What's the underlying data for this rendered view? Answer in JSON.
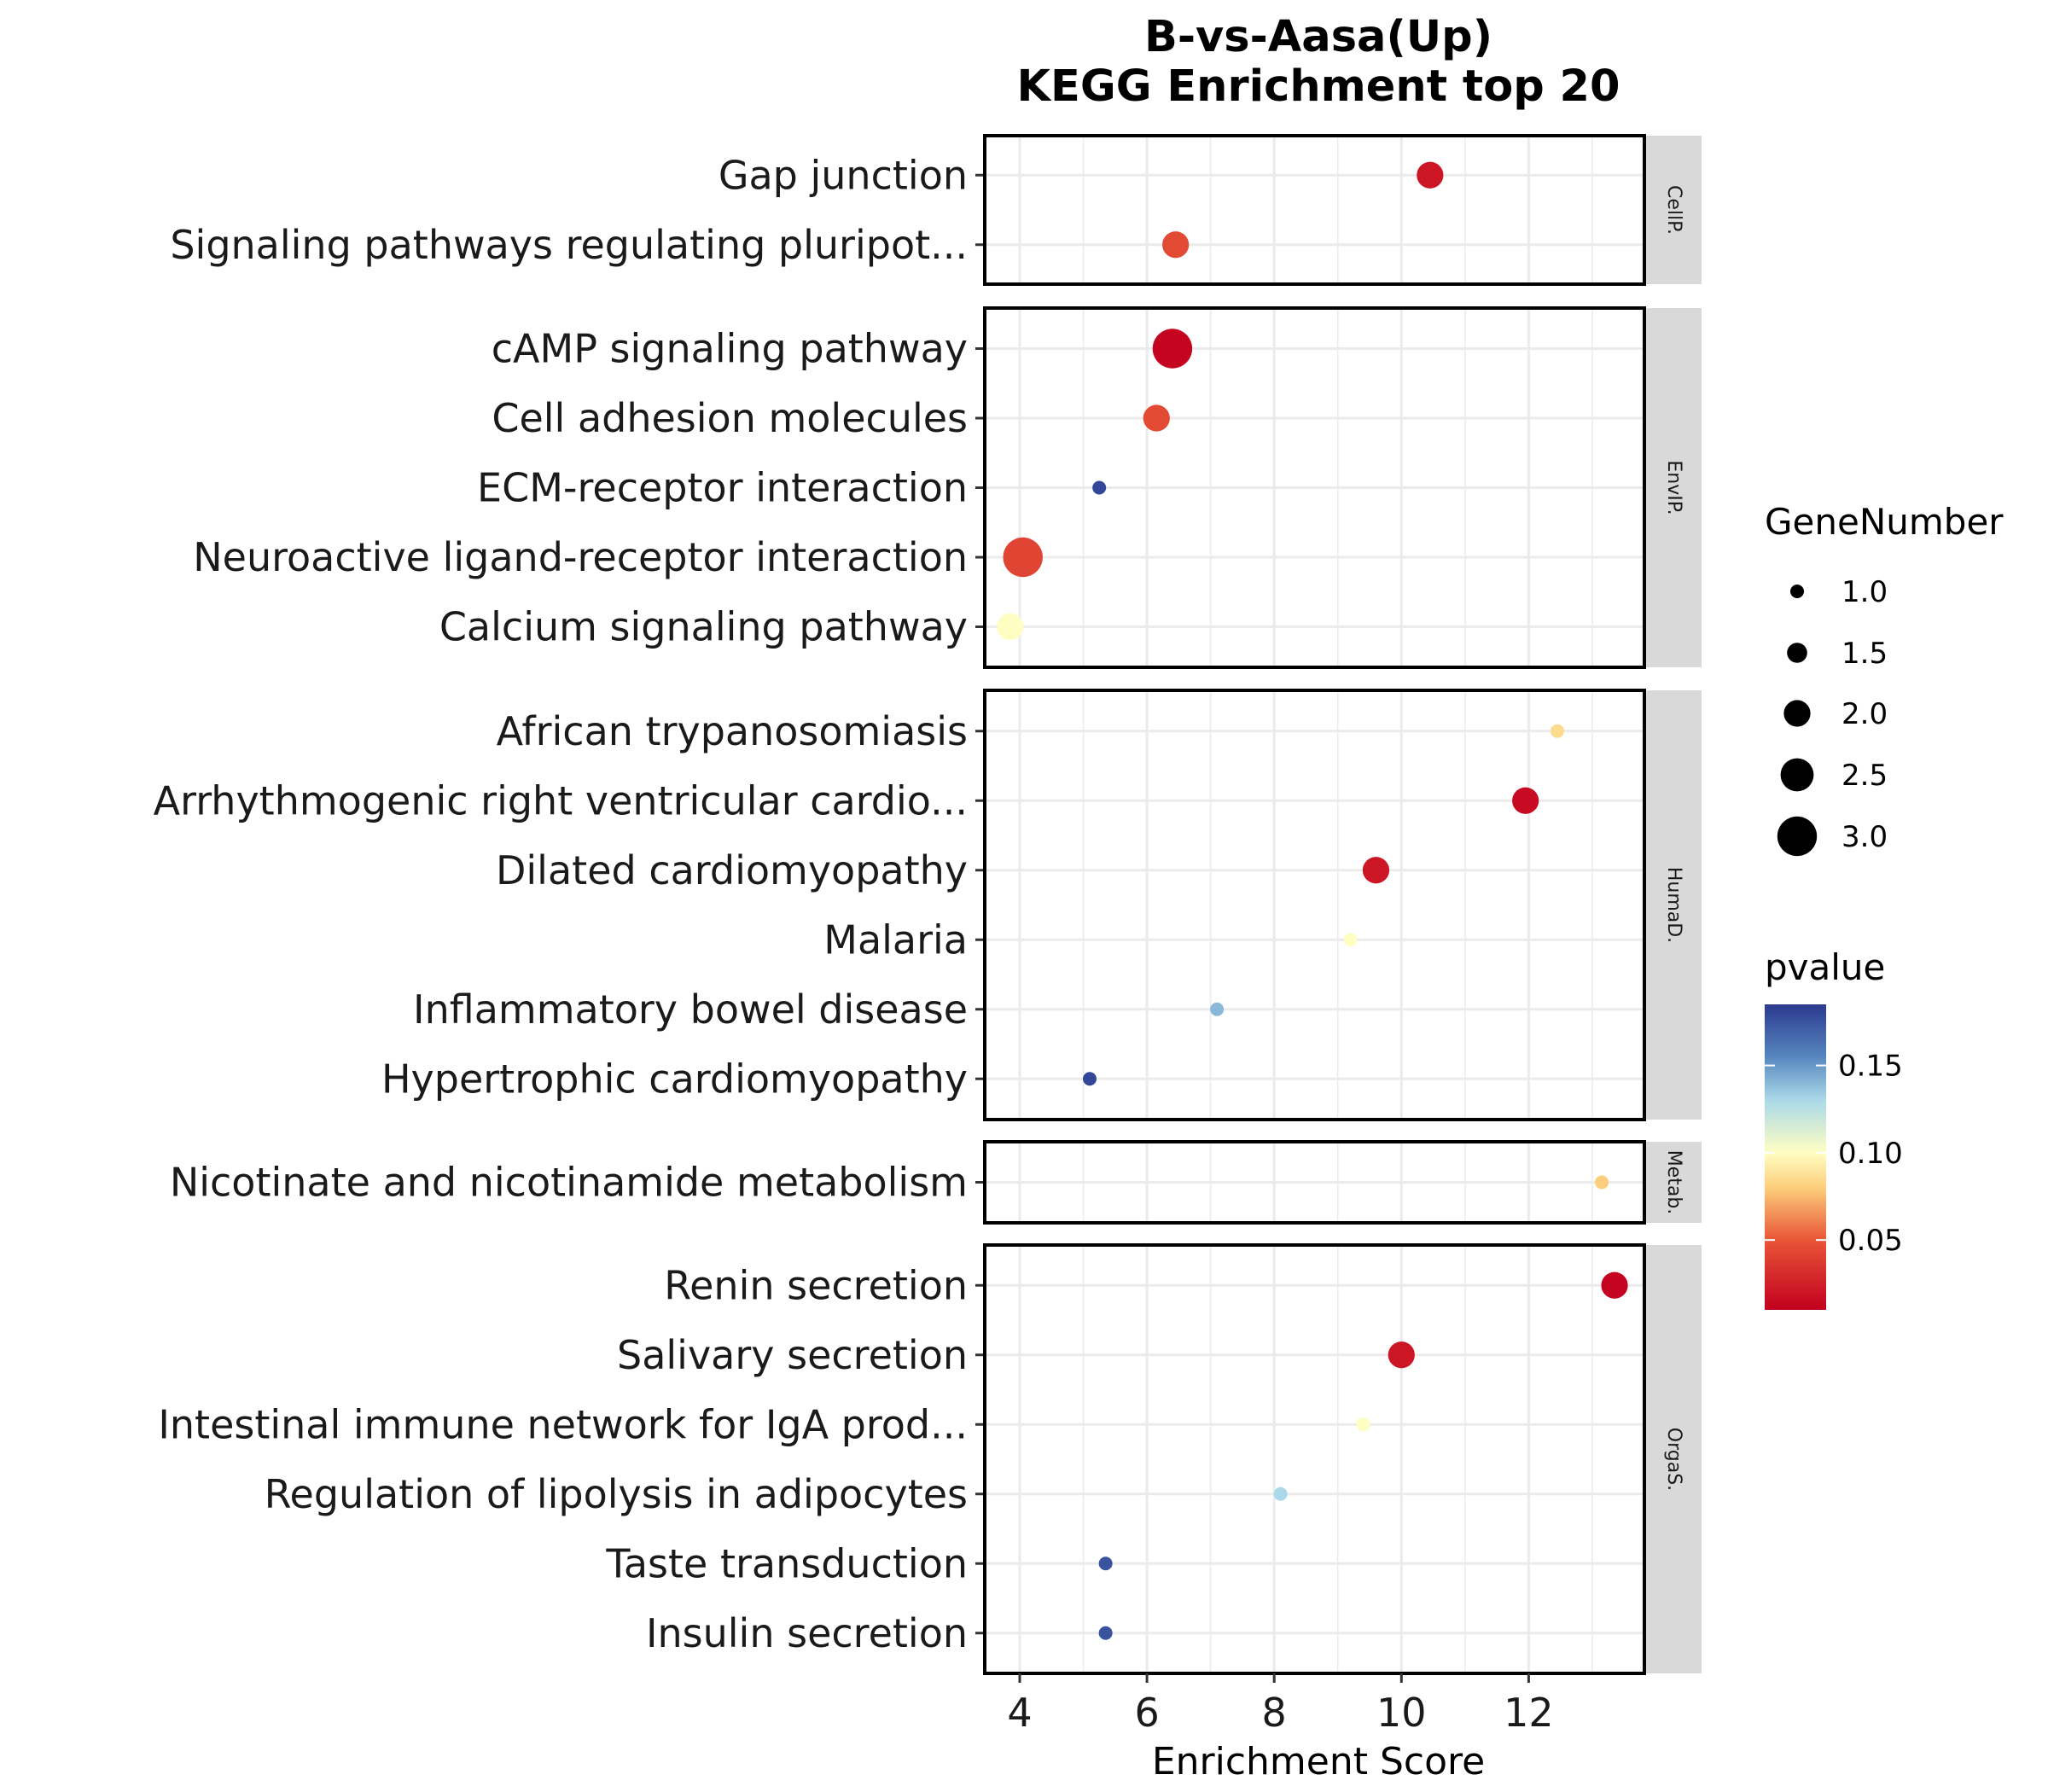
{
  "chart_data": {
    "type": "scatter",
    "title": "B-vs-Aasa(Up)",
    "subtitle": "KEGG Enrichment top 20",
    "xlabel": "Enrichment Score",
    "ylabel": "",
    "xlim": [
      3.4,
      13.8
    ],
    "xticks": [
      "4",
      "6",
      "8",
      "10",
      "12"
    ],
    "grid": true,
    "legend_position": "right",
    "size_legend": {
      "title": "GeneNumber",
      "values": [
        "1.0",
        "1.5",
        "2.0",
        "2.5",
        "3.0"
      ]
    },
    "color_legend": {
      "title": "pvalue",
      "ticks": [
        "0.05",
        "0.10",
        "0.15"
      ],
      "range": [
        0.01,
        0.185
      ],
      "low_color": "#c2001f",
      "high_color": "#2b3a8f"
    },
    "facets": [
      {
        "label": "CellP.",
        "items": [
          {
            "term": "Gap junction",
            "x": 10.45,
            "gene_number": 2,
            "pvalue": 0.02
          },
          {
            "term": "Signaling pathways regulating pluripot...",
            "x": 6.45,
            "gene_number": 2,
            "pvalue": 0.045
          }
        ]
      },
      {
        "label": "EnvIP.",
        "items": [
          {
            "term": "cAMP signaling pathway",
            "x": 6.4,
            "gene_number": 3,
            "pvalue": 0.012
          },
          {
            "term": "Cell adhesion molecules",
            "x": 6.15,
            "gene_number": 2,
            "pvalue": 0.045
          },
          {
            "term": "ECM-receptor interaction",
            "x": 5.25,
            "gene_number": 1,
            "pvalue": 0.18
          },
          {
            "term": "Neuroactive ligand-receptor interaction",
            "x": 4.05,
            "gene_number": 3,
            "pvalue": 0.042
          },
          {
            "term": "Calcium signaling pathway",
            "x": 3.85,
            "gene_number": 2,
            "pvalue": 0.1
          }
        ]
      },
      {
        "label": "HumaD.",
        "items": [
          {
            "term": "African trypanosomiasis",
            "x": 12.45,
            "gene_number": 1,
            "pvalue": 0.085
          },
          {
            "term": "Arrhythmogenic right ventricular cardio...",
            "x": 11.95,
            "gene_number": 2,
            "pvalue": 0.015
          },
          {
            "term": "Dilated cardiomyopathy",
            "x": 9.6,
            "gene_number": 2,
            "pvalue": 0.02
          },
          {
            "term": "Malaria",
            "x": 9.2,
            "gene_number": 1,
            "pvalue": 0.1
          },
          {
            "term": "Inflammatory bowel disease",
            "x": 7.1,
            "gene_number": 1,
            "pvalue": 0.14
          },
          {
            "term": "Hypertrophic cardiomyopathy",
            "x": 5.1,
            "gene_number": 1,
            "pvalue": 0.18
          }
        ]
      },
      {
        "label": "Metab.",
        "items": [
          {
            "term": "Nicotinate and nicotinamide metabolism",
            "x": 13.15,
            "gene_number": 1,
            "pvalue": 0.08
          }
        ]
      },
      {
        "label": "OrgaS.",
        "items": [
          {
            "term": "Renin secretion",
            "x": 13.35,
            "gene_number": 2,
            "pvalue": 0.012
          },
          {
            "term": "Salivary secretion",
            "x": 10.0,
            "gene_number": 2,
            "pvalue": 0.02
          },
          {
            "term": "Intestinal immune network for IgA prod...",
            "x": 9.4,
            "gene_number": 1,
            "pvalue": 0.1
          },
          {
            "term": "Regulation of lipolysis in adipocytes",
            "x": 8.1,
            "gene_number": 1,
            "pvalue": 0.13
          },
          {
            "term": "Taste transduction",
            "x": 5.35,
            "gene_number": 1,
            "pvalue": 0.175
          },
          {
            "term": "Insulin secretion",
            "x": 5.35,
            "gene_number": 1,
            "pvalue": 0.175
          }
        ]
      }
    ]
  }
}
